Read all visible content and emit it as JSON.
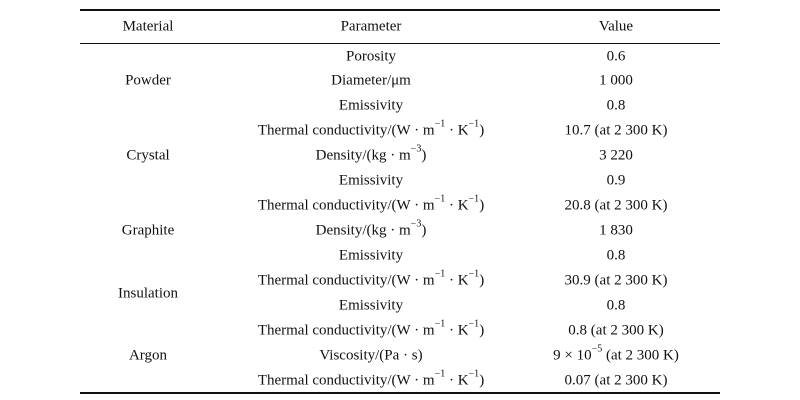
{
  "header": {
    "material": "Material",
    "parameter": "Parameter",
    "value": "Value"
  },
  "materials": {
    "powder": "Powder",
    "crystal": "Crystal",
    "graphite": "Graphite",
    "insulation": "Insulation",
    "argon": "Argon"
  },
  "rows": [
    {
      "parameter": "Porosity",
      "value": "0.6"
    },
    {
      "parameter": "Diameter/μm",
      "value": "1 000"
    },
    {
      "parameter": "Emissivity",
      "value": "0.8"
    },
    {
      "parameter_main": "Thermal conductivity/(W · m",
      "parameter_exp1": "−1",
      "parameter_mid": " · K",
      "parameter_exp2": "−1",
      "parameter_end": ")",
      "value": "10.7 (at 2 300 K)"
    },
    {
      "parameter_main": "Density/(kg · m",
      "parameter_exp1": "−3",
      "parameter_end": ")",
      "value": "3 220"
    },
    {
      "parameter": "Emissivity",
      "value": "0.9"
    },
    {
      "parameter_main": "Thermal conductivity/(W · m",
      "parameter_exp1": "−1",
      "parameter_mid": " · K",
      "parameter_exp2": "−1",
      "parameter_end": ")",
      "value": "20.8 (at 2 300 K)"
    },
    {
      "parameter_main": "Density/(kg · m",
      "parameter_exp1": "−3",
      "parameter_end": ")",
      "value": "1 830"
    },
    {
      "parameter": "Emissivity",
      "value": "0.8"
    },
    {
      "parameter_main": "Thermal conductivity/(W · m",
      "parameter_exp1": "−1",
      "parameter_mid": " · K",
      "parameter_exp2": "−1",
      "parameter_end": ")",
      "value": "30.9 (at 2 300 K)"
    },
    {
      "parameter": "Emissivity",
      "value": "0.8"
    },
    {
      "parameter_main": "Thermal conductivity/(W · m",
      "parameter_exp1": "−1",
      "parameter_mid": " · K",
      "parameter_exp2": "−1",
      "parameter_end": ")",
      "value": "0.8 (at 2 300 K)"
    },
    {
      "parameter_main": "Viscosity/(Pa · s)",
      "value_main": "9 × 10",
      "value_exp": "−5",
      "value_end": " (at 2 300 K)"
    },
    {
      "parameter_main": "Thermal conductivity/(W · m",
      "parameter_exp1": "−1",
      "parameter_mid": " · K",
      "parameter_exp2": "−1",
      "parameter_end": ")",
      "value": "0.07 (at 2 300 K)"
    }
  ]
}
